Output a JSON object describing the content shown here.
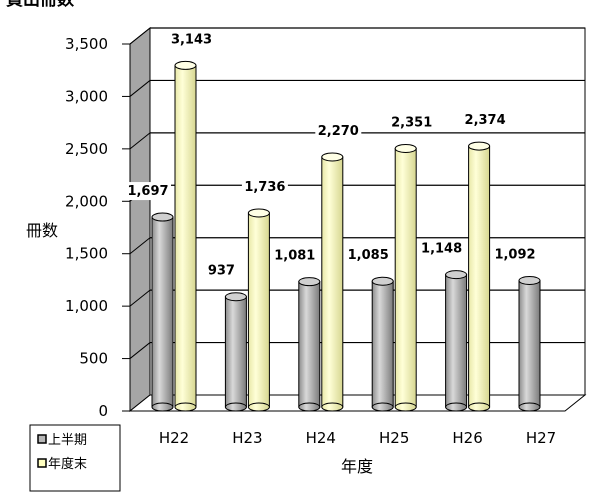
{
  "chart_data": {
    "type": "bar",
    "title": "貸出冊数",
    "xlabel": "年度",
    "ylabel": "冊数",
    "categories": [
      "H22",
      "H23",
      "H24",
      "H25",
      "H26",
      "H27"
    ],
    "series": [
      {
        "name": "上半期",
        "values": [
          1697,
          937,
          1081,
          1085,
          1148,
          1092
        ],
        "color": "#b8b8b8"
      },
      {
        "name": "年度末",
        "values": [
          3143,
          1736,
          2270,
          2351,
          2374,
          null
        ],
        "color": "#ffffc0"
      }
    ],
    "data_labels": {
      "上半期": [
        "1,697",
        "937",
        "1,081",
        "1,085",
        "1,148",
        "1,092"
      ],
      "年度末": [
        "3,143",
        "1,736",
        "2,270",
        "2,351",
        "2,374",
        ""
      ]
    },
    "yticks": [
      "0",
      "500",
      "1,000",
      "1,500",
      "2,000",
      "2,500",
      "3,000",
      "3,500"
    ],
    "ylim": [
      0,
      3500
    ],
    "grid": true,
    "legend_position": "bottom-left",
    "wall_color": "#a6a6a6"
  }
}
